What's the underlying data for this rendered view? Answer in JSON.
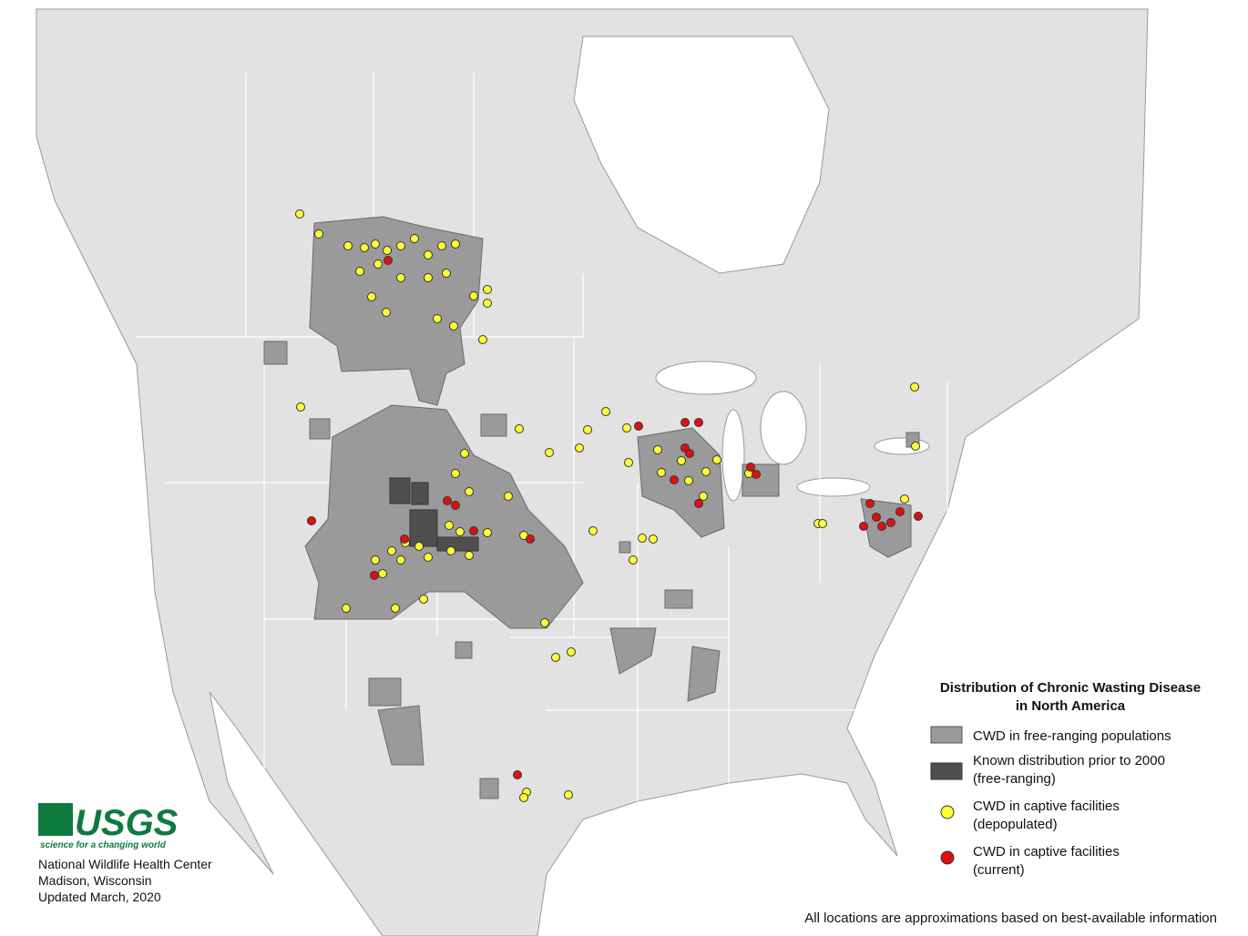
{
  "title": {
    "line1": "Distribution of Chronic Wasting Disease",
    "line2": "in North America"
  },
  "legend": [
    {
      "lines": [
        "CWD in free-ranging populations"
      ]
    },
    {
      "lines": [
        "Known distribution prior to 2000",
        "(free-ranging)"
      ]
    },
    {
      "lines": [
        "CWD in captive facilities",
        "(depopulated)"
      ]
    },
    {
      "lines": [
        "CWD in captive facilities",
        "(current)"
      ]
    }
  ],
  "logo": {
    "name": "USGS",
    "tagline": "science for a changing world"
  },
  "credits": [
    "National Wildlife Health Center",
    "Madison, Wisconsin",
    "Updated March, 2020"
  ],
  "footnote": "All locations are approximations based on best-available information"
}
